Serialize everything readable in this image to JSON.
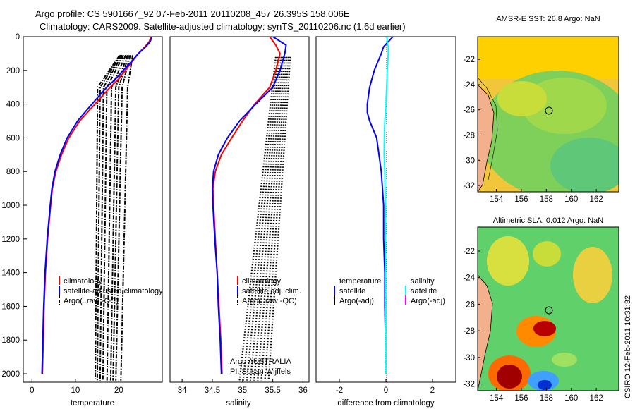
{
  "title": {
    "line1": "Argo profile: CS 5901667_92 07-Feb-2011 20110208_457 26.395S 158.006E",
    "line2": "Climatology: CARS2009. Satellite-adjusted climatology: synTS_20110206.nc (1.6d earlier)"
  },
  "credit": "CSIRO 12-Feb-2011 10:31:32",
  "colors": {
    "climatology": "#ff0000",
    "satellite": "#0000ff",
    "argo": "#000000",
    "salinity_satellite": "#00ffff",
    "salinity_argo": "#ff00ff",
    "land": "#f2b08c"
  },
  "chart_data": [
    {
      "type": "line",
      "name": "temperature",
      "xlabel": "temperature",
      "ylabel": "",
      "xlim": [
        -2,
        30
      ],
      "ylim": [
        2050,
        0
      ],
      "xticks": [
        "0",
        "10",
        "20"
      ],
      "xtick_values": [
        0,
        10,
        20
      ],
      "yticks": [
        "0",
        "200",
        "400",
        "600",
        "800",
        "1000",
        "1200",
        "1400",
        "1600",
        "1800",
        "2000"
      ],
      "ytick_values": [
        0,
        200,
        400,
        600,
        800,
        1000,
        1200,
        1400,
        1600,
        1800,
        2000
      ],
      "depth": [
        0,
        30,
        60,
        100,
        150,
        200,
        250,
        300,
        400,
        500,
        600,
        700,
        800,
        900,
        1000,
        1200,
        1400,
        1600,
        1800,
        2000
      ],
      "series": [
        {
          "name": "climatology",
          "color": "#ff0000",
          "values": [
            27.4,
            27.0,
            26.0,
            24.5,
            23.0,
            21.5,
            20.0,
            18.0,
            14.5,
            11.0,
            8.5,
            6.8,
            5.5,
            4.7,
            4.3,
            3.6,
            3.1,
            2.8,
            2.6,
            2.4
          ]
        },
        {
          "name": "satellite-adjusted climatology",
          "color": "#0000ff",
          "values": [
            27.6,
            27.2,
            26.2,
            24.5,
            22.8,
            21.0,
            19.3,
            17.2,
            13.8,
            10.5,
            8.1,
            6.5,
            5.3,
            4.6,
            4.2,
            3.5,
            3.0,
            2.7,
            2.5,
            2.3
          ]
        }
      ],
      "argo_lines": [
        {
          "offset": 15.2
        },
        {
          "offset": 15.8
        },
        {
          "offset": 16.6
        },
        {
          "offset": 17.4
        },
        {
          "offset": 18.5
        },
        {
          "offset": 19.5
        },
        {
          "offset": 20.2
        },
        {
          "offset": 21.0
        },
        {
          "offset": 22.3
        }
      ],
      "legend": [
        "climatology",
        "satellite-adjusted climatology",
        "Argo(..raw -QC)"
      ]
    },
    {
      "type": "line",
      "name": "salinity",
      "xlabel": "salinity",
      "xlim": [
        33.8,
        36.1
      ],
      "ylim": [
        2050,
        0
      ],
      "xticks": [
        "34",
        "34.5",
        "35",
        "35.5",
        "36"
      ],
      "xtick_values": [
        34,
        34.5,
        35,
        35.5,
        36
      ],
      "depth": [
        0,
        50,
        100,
        200,
        300,
        400,
        500,
        600,
        700,
        800,
        900,
        1000,
        1200,
        1400,
        1600,
        1800,
        2000
      ],
      "series": [
        {
          "name": "climatology",
          "color": "#ff0000",
          "values": [
            35.45,
            35.55,
            35.62,
            35.55,
            35.45,
            35.2,
            35.0,
            34.82,
            34.65,
            34.55,
            34.51,
            34.52,
            34.55,
            34.58,
            34.61,
            34.64,
            34.66
          ]
        },
        {
          "name": "satellite adj. clim.",
          "color": "#0000ff",
          "values": [
            35.5,
            35.72,
            35.7,
            35.62,
            35.5,
            35.22,
            34.95,
            34.75,
            34.6,
            34.52,
            34.5,
            34.51,
            34.54,
            34.58,
            34.6,
            34.63,
            34.65
          ]
        }
      ],
      "legend": [
        "climatology",
        "satellite adj. clim.",
        "Argo(..raw -QC)"
      ],
      "annotation": [
        "Argo AUSTRALIA",
        "PI: Susan Wijffels"
      ]
    },
    {
      "type": "line",
      "name": "difference",
      "xlabel": "difference from climatology",
      "xlim": [
        -3,
        3
      ],
      "ylim": [
        2050,
        0
      ],
      "xticks": [
        "-2",
        "0",
        "2"
      ],
      "xtick_values": [
        -2,
        0,
        2
      ],
      "depth": [
        0,
        30,
        60,
        100,
        200,
        300,
        400,
        450,
        500,
        600,
        700,
        800,
        1000,
        1200,
        1400,
        1600,
        1800,
        2000
      ],
      "series": [
        {
          "name": "temperature satellite",
          "color": "#0000ff",
          "values": [
            0.3,
            0.1,
            -0.1,
            -0.2,
            -0.5,
            -0.7,
            -0.8,
            -0.8,
            -0.7,
            -0.4,
            -0.3,
            -0.2,
            -0.1,
            -0.1,
            -0.05,
            -0.05,
            -0.02,
            0
          ]
        },
        {
          "name": "salinity satellite",
          "color": "#00ffff",
          "values": [
            0.05,
            0.05,
            0.1,
            0.1,
            0.06,
            0.03,
            0,
            -0.02,
            -0.05,
            -0.07,
            -0.08,
            -0.05,
            -0.03,
            -0.02,
            -0.01,
            0,
            0,
            0
          ]
        }
      ],
      "legend_temperature": [
        "temperature",
        "satellite",
        "Argo(-adj)"
      ],
      "legend_salinity": [
        "salinity",
        "satellite",
        "Argo(-adj)"
      ]
    },
    {
      "type": "heatmap",
      "name": "sst_map",
      "title": "AMSR-E SST: 26.8 Argo: NaN",
      "xlim": [
        152.5,
        163.8
      ],
      "ylim": [
        -32.5,
        -20.2
      ],
      "xticks": [
        "154",
        "156",
        "158",
        "160",
        "162"
      ],
      "xtick_values": [
        154,
        156,
        158,
        160,
        162
      ],
      "yticks": [
        "-22",
        "-24",
        "-26",
        "-28",
        "-30",
        "-32"
      ],
      "ytick_values": [
        -22,
        -24,
        -26,
        -28,
        -30,
        -32
      ],
      "profile_location": [
        158.006,
        -26.395
      ]
    },
    {
      "type": "heatmap",
      "name": "sla_map",
      "title": "Altimetric SLA: 0.012 Argo: NaN",
      "xlim": [
        152.5,
        163.8
      ],
      "ylim": [
        -32.5,
        -20.2
      ],
      "xticks": [
        "154",
        "156",
        "158",
        "160",
        "162"
      ],
      "xtick_values": [
        154,
        156,
        158,
        160,
        162
      ],
      "yticks": [
        "-22",
        "-24",
        "-26",
        "-28",
        "-30",
        "-32"
      ],
      "ytick_values": [
        -22,
        -24,
        -26,
        -28,
        -30,
        -32
      ],
      "profile_location": [
        158.006,
        -26.395
      ]
    }
  ]
}
